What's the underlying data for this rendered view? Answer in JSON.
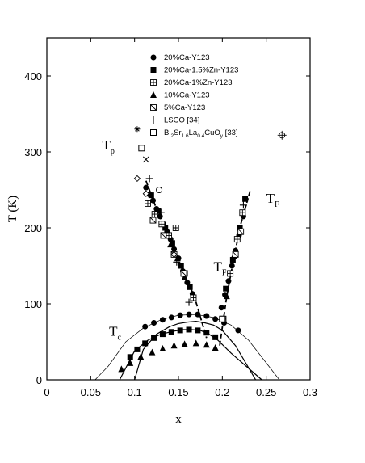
{
  "chart_data": {
    "type": "scatter",
    "title": "",
    "xlabel": "x",
    "ylabel": "T (K)",
    "xlim": [
      0,
      0.3
    ],
    "ylim": [
      0,
      450
    ],
    "xticks": [
      "0",
      "0.05",
      "0.1",
      "0.15",
      "0.2",
      "0.25",
      "0.3"
    ],
    "yticks": [
      "0",
      "100",
      "200",
      "300",
      "400"
    ],
    "grid": false,
    "legend_position": "top-right",
    "curve_labels": [
      {
        "main": "T",
        "sub": "p",
        "x": 0.063,
        "y": 303
      },
      {
        "main": "T",
        "sub": "F",
        "x": 0.25,
        "y": 233
      },
      {
        "main": "T",
        "sub": "c",
        "x": 0.071,
        "y": 58
      },
      {
        "main": "T",
        "sub": "F",
        "x": 0.19,
        "y": 143
      }
    ],
    "series": [
      {
        "name": "20%Ca-Y123",
        "name_parts": [
          {
            "t": "20%Ca-Y123"
          }
        ],
        "marker": "circle",
        "points": [
          [
            0.112,
            70
          ],
          [
            0.122,
            75
          ],
          [
            0.132,
            79
          ],
          [
            0.142,
            82
          ],
          [
            0.152,
            85
          ],
          [
            0.162,
            86
          ],
          [
            0.172,
            86
          ],
          [
            0.182,
            84
          ],
          [
            0.192,
            80
          ],
          [
            0.202,
            75
          ],
          [
            0.218,
            65
          ],
          [
            0.113,
            253
          ],
          [
            0.117,
            244
          ],
          [
            0.121,
            236
          ],
          [
            0.125,
            225
          ],
          [
            0.129,
            215
          ],
          [
            0.133,
            205
          ],
          [
            0.137,
            195
          ],
          [
            0.141,
            185
          ],
          [
            0.145,
            172
          ],
          [
            0.15,
            160
          ],
          [
            0.155,
            143
          ],
          [
            0.16,
            128
          ],
          [
            0.166,
            113
          ],
          [
            0.199,
            95
          ],
          [
            0.203,
            112
          ],
          [
            0.207,
            130
          ],
          [
            0.211,
            150
          ],
          [
            0.215,
            170
          ],
          [
            0.219,
            190
          ],
          [
            0.224,
            215
          ]
        ]
      },
      {
        "name": "20%Ca-1.5%Zn-Y123",
        "name_parts": [
          {
            "t": "20%Ca-1.5%Zn-Y123"
          }
        ],
        "marker": "square",
        "points": [
          [
            0.095,
            30
          ],
          [
            0.103,
            40
          ],
          [
            0.112,
            48
          ],
          [
            0.122,
            55
          ],
          [
            0.132,
            60
          ],
          [
            0.142,
            63
          ],
          [
            0.152,
            65
          ],
          [
            0.162,
            66
          ],
          [
            0.172,
            65
          ],
          [
            0.182,
            62
          ],
          [
            0.192,
            56
          ],
          [
            0.119,
            243
          ],
          [
            0.127,
            222
          ],
          [
            0.135,
            200
          ],
          [
            0.143,
            180
          ],
          [
            0.153,
            150
          ],
          [
            0.163,
            122
          ],
          [
            0.204,
            120
          ],
          [
            0.212,
            158
          ],
          [
            0.22,
            200
          ],
          [
            0.226,
            238
          ]
        ]
      },
      {
        "name": "20%Ca-1%Zn-Y123",
        "name_parts": [
          {
            "t": "20%Ca-1%Zn-Y123"
          }
        ],
        "marker": "boxplus",
        "points": [
          [
            0.115,
            232
          ],
          [
            0.123,
            218
          ],
          [
            0.131,
            205
          ],
          [
            0.139,
            190
          ],
          [
            0.147,
            200
          ],
          [
            0.157,
            140
          ],
          [
            0.167,
            108
          ],
          [
            0.201,
            80
          ],
          [
            0.209,
            140
          ],
          [
            0.217,
            185
          ],
          [
            0.223,
            220
          ]
        ]
      },
      {
        "name": "10%Ca-Y123",
        "name_parts": [
          {
            "t": "10%Ca-Y123"
          }
        ],
        "marker": "triangle",
        "points": [
          [
            0.085,
            14
          ],
          [
            0.095,
            22
          ],
          [
            0.107,
            30
          ],
          [
            0.12,
            36
          ],
          [
            0.132,
            41
          ],
          [
            0.145,
            45
          ],
          [
            0.157,
            47
          ],
          [
            0.17,
            48
          ],
          [
            0.182,
            46
          ],
          [
            0.192,
            42
          ],
          [
            0.141,
            178
          ],
          [
            0.149,
            160
          ],
          [
            0.157,
            135
          ],
          [
            0.205,
            110
          ],
          [
            0.213,
            163
          ]
        ]
      },
      {
        "name": "5%Ca-Y123",
        "name_parts": [
          {
            "t": "5%Ca-Y123"
          }
        ],
        "marker": "boxslash",
        "points": [
          [
            0.121,
            210
          ],
          [
            0.133,
            190
          ],
          [
            0.145,
            165
          ],
          [
            0.156,
            140
          ],
          [
            0.215,
            165
          ],
          [
            0.221,
            195
          ]
        ]
      },
      {
        "name": "LSCO [34]",
        "name_parts": [
          {
            "t": "LSCO [34]"
          }
        ],
        "marker": "plus",
        "points": [
          [
            0.117,
            265
          ],
          [
            0.13,
            220
          ],
          [
            0.148,
            155
          ],
          [
            0.162,
            102
          ],
          [
            0.224,
            230
          ]
        ]
      },
      {
        "name": "Bi2Sr1.6La0.4CuOy [33]",
        "name_parts": [
          {
            "t": "Bi"
          },
          {
            "t": "2",
            "sub": true
          },
          {
            "t": "Sr"
          },
          {
            "t": "1.6",
            "sub": true
          },
          {
            "t": "La"
          },
          {
            "t": "0.4",
            "sub": true
          },
          {
            "t": "CuO"
          },
          {
            "t": "y",
            "sub": true
          },
          {
            "t": " [33]"
          }
        ],
        "marker": "opensquare",
        "points": [
          [
            0.108,
            305
          ],
          [
            0.2,
            80
          ]
        ]
      },
      {
        "name": "",
        "marker": "diamond",
        "points": [
          [
            0.103,
            265
          ],
          [
            0.113,
            245
          ],
          [
            0.145,
            165
          ]
        ]
      },
      {
        "name": "",
        "marker": "opencircle",
        "points": [
          [
            0.128,
            250
          ]
        ]
      },
      {
        "name": "",
        "marker": "cross",
        "points": [
          [
            0.113,
            290
          ]
        ]
      },
      {
        "name": "",
        "marker": "asterisk",
        "points": [
          [
            0.103,
            330
          ]
        ]
      },
      {
        "name": "",
        "marker": "circleplus",
        "points": [
          [
            0.268,
            322
          ]
        ]
      }
    ],
    "fit_lines": [
      {
        "points": [
          [
            0.113,
            262
          ],
          [
            0.125,
            225
          ],
          [
            0.14,
            185
          ],
          [
            0.155,
            143
          ],
          [
            0.168,
            110
          ],
          [
            0.182,
            55
          ]
        ],
        "style": "dashed"
      },
      {
        "points": [
          [
            0.197,
            45
          ],
          [
            0.205,
            110
          ],
          [
            0.213,
            160
          ],
          [
            0.221,
            205
          ],
          [
            0.232,
            250
          ]
        ],
        "style": "dashed"
      },
      {
        "points": [
          [
            0.1,
            0
          ],
          [
            0.11,
            40
          ],
          [
            0.125,
            60
          ],
          [
            0.14,
            70
          ],
          [
            0.15,
            74
          ],
          [
            0.16,
            76
          ],
          [
            0.17,
            77
          ],
          [
            0.18,
            75
          ],
          [
            0.19,
            72
          ],
          [
            0.2,
            65
          ],
          [
            0.215,
            45
          ],
          [
            0.238,
            0
          ]
        ],
        "style": "solid"
      },
      {
        "points": [
          [
            0.083,
            0
          ],
          [
            0.1,
            38
          ],
          [
            0.115,
            52
          ],
          [
            0.13,
            60
          ],
          [
            0.145,
            64
          ],
          [
            0.155,
            66
          ],
          [
            0.165,
            66
          ],
          [
            0.175,
            65
          ],
          [
            0.185,
            60
          ],
          [
            0.195,
            52
          ],
          [
            0.21,
            35
          ],
          [
            0.245,
            0
          ]
        ],
        "style": "solid"
      },
      {
        "points": [
          [
            0.055,
            0
          ],
          [
            0.07,
            18
          ],
          [
            0.09,
            50
          ],
          [
            0.11,
            68
          ],
          [
            0.13,
            79
          ],
          [
            0.15,
            85
          ],
          [
            0.17,
            86
          ],
          [
            0.19,
            82
          ],
          [
            0.21,
            72
          ],
          [
            0.23,
            52
          ],
          [
            0.265,
            0
          ]
        ],
        "style": "thin"
      }
    ]
  }
}
